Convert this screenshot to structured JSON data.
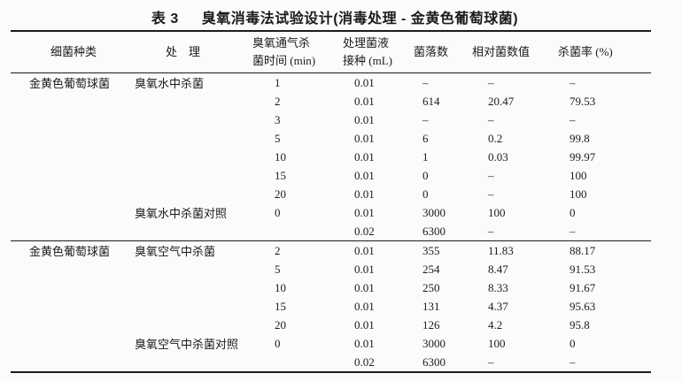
{
  "caption": {
    "label": "表 3",
    "title": "臭氧消毒法试验设计(消毒处理 - 金黄色葡萄球菌)"
  },
  "table": {
    "headers": [
      {
        "line1": "细菌种类",
        "line2": ""
      },
      {
        "line1": "处　理",
        "line2": ""
      },
      {
        "line1": "臭氧通气杀",
        "line2": "菌时间 (min)"
      },
      {
        "line1": "处理菌液",
        "line2": "接种 (mL)"
      },
      {
        "line1": "菌落数",
        "line2": ""
      },
      {
        "line1": "相对菌数值",
        "line2": ""
      },
      {
        "line1": "杀菌率 (%)",
        "line2": ""
      }
    ],
    "sections": [
      {
        "rows": [
          [
            "金黄色葡萄球菌",
            "臭氧水中杀菌",
            "1",
            "0.01",
            "–",
            "–",
            "–"
          ],
          [
            "",
            "",
            "2",
            "0.01",
            "614",
            "20.47",
            "79.53"
          ],
          [
            "",
            "",
            "3",
            "0.01",
            "–",
            "–",
            "–"
          ],
          [
            "",
            "",
            "5",
            "0.01",
            "6",
            "0.2",
            "99.8"
          ],
          [
            "",
            "",
            "10",
            "0.01",
            "1",
            "0.03",
            "99.97"
          ],
          [
            "",
            "",
            "15",
            "0.01",
            "0",
            "–",
            "100"
          ],
          [
            "",
            "",
            "20",
            "0.01",
            "0",
            "–",
            "100"
          ],
          [
            "",
            "臭氧水中杀菌对照",
            "0",
            "0.01",
            "3000",
            "100",
            "0"
          ],
          [
            "",
            "",
            "",
            "0.02",
            "6300",
            "–",
            "–"
          ]
        ]
      },
      {
        "rows": [
          [
            "金黄色葡萄球菌",
            "臭氧空气中杀菌",
            "2",
            "0.01",
            "355",
            "11.83",
            "88.17"
          ],
          [
            "",
            "",
            "5",
            "0.01",
            "254",
            "8.47",
            "91.53"
          ],
          [
            "",
            "",
            "10",
            "0.01",
            "250",
            "8.33",
            "91.67"
          ],
          [
            "",
            "",
            "15",
            "0.01",
            "131",
            "4.37",
            "95.63"
          ],
          [
            "",
            "",
            "20",
            "0.01",
            "126",
            "4.2",
            "95.8"
          ],
          [
            "",
            "臭氧空气中杀菌对照",
            "0",
            "0.01",
            "3000",
            "100",
            "0"
          ],
          [
            "",
            "",
            "",
            "0.02",
            "6300",
            "–",
            "–"
          ]
        ]
      }
    ]
  },
  "colors": {
    "ink": "#1b1b1b",
    "paper": "#fbfbfa"
  }
}
